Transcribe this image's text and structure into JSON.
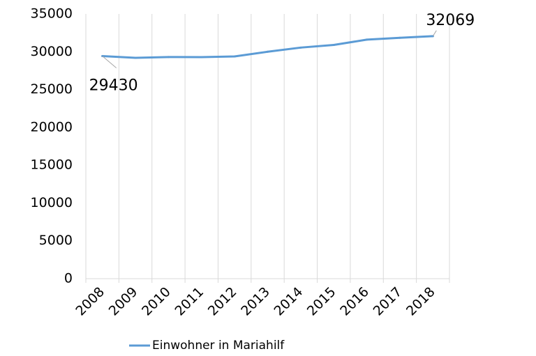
{
  "chart_data": {
    "type": "line",
    "title": "",
    "xlabel": "",
    "ylabel": "",
    "categories": [
      "2008",
      "2009",
      "2010",
      "2011",
      "2012",
      "2013",
      "2014",
      "2015",
      "2016",
      "2017",
      "2018"
    ],
    "series": [
      {
        "name": "Einwohner in Mariahilf",
        "color": "#5b9bd5",
        "values": [
          29430,
          29200,
          29300,
          29290,
          29380,
          30000,
          30550,
          30900,
          31600,
          31850,
          32069
        ]
      }
    ],
    "ylim": [
      0,
      35000
    ],
    "y_ticks": [
      "0",
      "5000",
      "10000",
      "15000",
      "20000",
      "25000",
      "30000",
      "35000"
    ],
    "grid": "vertical",
    "legend_position": "bottom",
    "data_labels": [
      {
        "category": "2008",
        "text": "29430"
      },
      {
        "category": "2018",
        "text": "32069"
      }
    ]
  }
}
